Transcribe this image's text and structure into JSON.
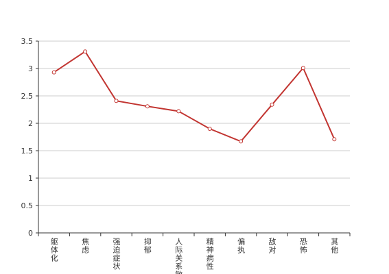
{
  "chart_data": {
    "type": "line",
    "categories": [
      "躯体化",
      "焦虑",
      "强迫症状",
      "抑郁",
      "人际关系敏感",
      "精神病性",
      "偏执",
      "敌对",
      "恐怖",
      "其他"
    ],
    "values": [
      2.93,
      3.31,
      2.41,
      2.31,
      2.22,
      1.9,
      1.67,
      2.34,
      3.01,
      1.71
    ],
    "color": "#c23531",
    "ylim": [
      0,
      3.5
    ],
    "yticks": [
      0,
      0.5,
      1,
      1.5,
      2,
      2.5,
      3,
      3.5
    ],
    "grid": true
  }
}
